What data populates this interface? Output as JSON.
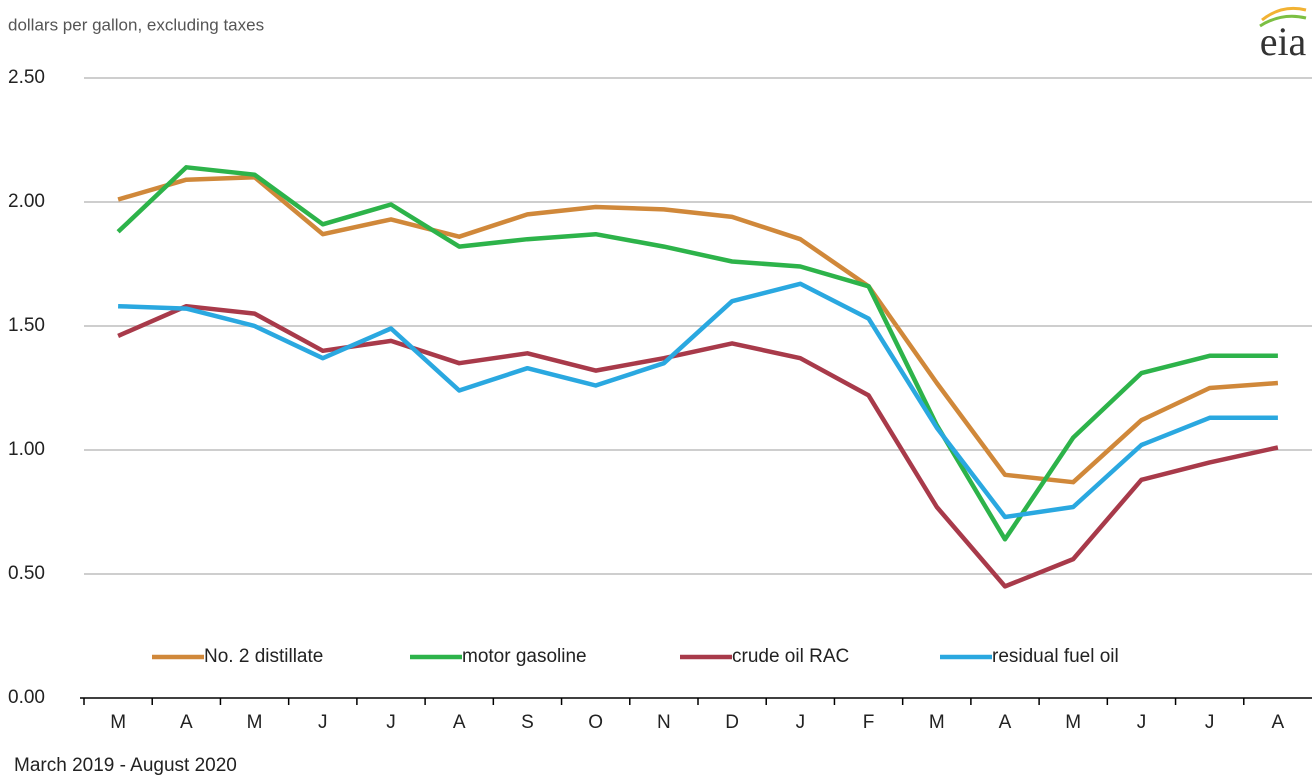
{
  "chart_data": {
    "type": "line",
    "y_label": "dollars per gallon, excluding  taxes",
    "x_label": "March 2019  -  August 2020",
    "logo": "eia",
    "categories": [
      "M",
      "A",
      "M",
      "J",
      "J",
      "A",
      "S",
      "O",
      "N",
      "D",
      "J",
      "F",
      "M",
      "A",
      "M",
      "J",
      "J",
      "A"
    ],
    "series": [
      {
        "name": "No. 2 distillate",
        "color": "#d0883a",
        "values": [
          2.01,
          2.09,
          2.1,
          1.87,
          1.93,
          1.86,
          1.95,
          1.98,
          1.97,
          1.94,
          1.85,
          1.66,
          1.27,
          0.9,
          0.87,
          1.12,
          1.25,
          1.27
        ]
      },
      {
        "name": "motor gasoline",
        "color": "#2db34a",
        "values": [
          1.88,
          2.14,
          2.11,
          1.91,
          1.99,
          1.82,
          1.85,
          1.87,
          1.82,
          1.76,
          1.74,
          1.66,
          1.1,
          0.64,
          1.05,
          1.31,
          1.38,
          1.38
        ]
      },
      {
        "name": "crude oil RAC",
        "color": "#a83a4a",
        "values": [
          1.46,
          1.58,
          1.55,
          1.4,
          1.44,
          1.35,
          1.39,
          1.32,
          1.37,
          1.43,
          1.37,
          1.22,
          0.77,
          0.45,
          0.56,
          0.88,
          0.95,
          1.01
        ]
      },
      {
        "name": "residual fuel oil",
        "color": "#2aa8e0",
        "values": [
          1.58,
          1.57,
          1.5,
          1.37,
          1.49,
          1.24,
          1.33,
          1.26,
          1.35,
          1.6,
          1.67,
          1.53,
          1.09,
          0.73,
          0.77,
          1.02,
          1.13,
          1.13
        ]
      }
    ],
    "ylim": [
      0,
      2.5
    ],
    "yticks": [
      {
        "value": 0,
        "label": "0.00"
      },
      {
        "value": 0.5,
        "label": "0.50"
      },
      {
        "value": 1,
        "label": "1.00"
      },
      {
        "value": 1.5,
        "label": "1.50"
      },
      {
        "value": 2,
        "label": "2.00"
      },
      {
        "value": 2.5,
        "label": "2.50"
      }
    ],
    "grid": true,
    "legend": "bottom"
  }
}
